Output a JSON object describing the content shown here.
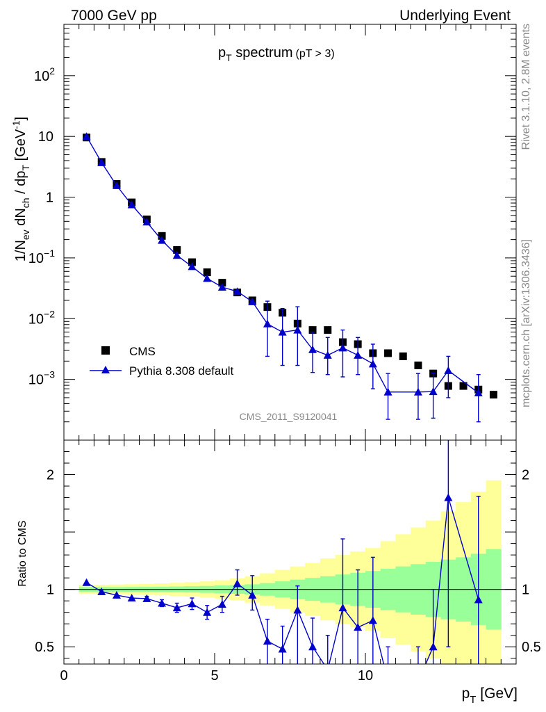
{
  "header": {
    "left": "7000 GeV pp",
    "right": "Underlying Event"
  },
  "side_labels": {
    "rivet": "Rivet 3.1.10,  2.8M events",
    "mcplots": "mcplots.cern.ch [arXiv:1306.3436]"
  },
  "watermark": "CMS_2011_S9120041",
  "colors": {
    "data": "#000000",
    "mc": "#0000cc",
    "band_inner": "#99ff99",
    "band_outer": "#ffff99"
  },
  "chart_data": [
    {
      "type": "scatter",
      "panel": "main",
      "title": "p",
      "title_sub": "T",
      "title_rest": " spectrum",
      "title_small": "(pT >  3)",
      "ylabel": "1/N_ev dN_ch / dp_T [GeV^-1]",
      "xlim": [
        0,
        15
      ],
      "ylim": [
        0.0001,
        700
      ],
      "yscale": "log",
      "y_ticks": [
        {
          "v": 100,
          "base": "10",
          "exp": "2"
        },
        {
          "v": 10,
          "base": "10",
          "exp": ""
        },
        {
          "v": 1,
          "base": "1",
          "exp": ""
        },
        {
          "v": 0.1,
          "base": "10",
          "exp": "−1"
        },
        {
          "v": 0.01,
          "base": "10",
          "exp": "−2"
        },
        {
          "v": 0.001,
          "base": "10",
          "exp": "−3"
        }
      ],
      "legend_position": "bottom-left",
      "series": [
        {
          "name": "CMS",
          "marker": "square",
          "x": [
            0.75,
            1.25,
            1.75,
            2.25,
            2.75,
            3.25,
            3.75,
            4.25,
            4.75,
            5.25,
            5.75,
            6.25,
            6.75,
            7.25,
            7.75,
            8.25,
            8.75,
            9.25,
            9.75,
            10.25,
            10.75,
            11.25,
            11.75,
            12.25,
            12.75,
            13.25,
            13.75,
            14.25
          ],
          "y": [
            9.6,
            3.8,
            1.65,
            0.82,
            0.43,
            0.23,
            0.135,
            0.085,
            0.058,
            0.039,
            0.027,
            0.02,
            0.0155,
            0.0125,
            0.0083,
            0.0065,
            0.0065,
            0.0041,
            0.0038,
            0.0027,
            0.0027,
            0.0024,
            0.0017,
            0.00125,
            0.00078,
            0.00078,
            0.00068,
            0.00056
          ]
        },
        {
          "name": "Pythia 8.308 default",
          "marker": "triangle",
          "x": [
            0.75,
            1.25,
            1.75,
            2.25,
            2.75,
            3.25,
            3.75,
            4.25,
            4.75,
            5.25,
            5.75,
            6.25,
            6.75,
            7.25,
            7.75,
            8.25,
            8.75,
            9.25,
            9.75,
            10.25,
            10.75,
            11.75,
            12.25,
            12.75,
            13.75
          ],
          "y": [
            10.0,
            3.7,
            1.55,
            0.75,
            0.39,
            0.195,
            0.11,
            0.072,
            0.046,
            0.033,
            0.028,
            0.019,
            0.0082,
            0.006,
            0.0065,
            0.0031,
            0.0025,
            0.0033,
            0.0025,
            0.0018,
            0.00062,
            0.00062,
            0.00063,
            0.0014,
            0.0006
          ],
          "err_lo": [
            0,
            0,
            0,
            0,
            0,
            0,
            0,
            0,
            0,
            0,
            0,
            0,
            0.0058,
            0.0043,
            0.0048,
            0.0018,
            0.0013,
            0.0022,
            0.0013,
            0.0011,
            0.0004,
            0.0004,
            0.0004,
            0.0009,
            0.0004
          ],
          "err_hi": [
            0,
            0,
            0,
            0,
            0,
            0,
            0,
            0,
            0,
            0,
            0,
            0,
            0.0112,
            0.0087,
            0.0092,
            0.0029,
            0.0024,
            0.0032,
            0.0024,
            0.002,
            0.00063,
            0.00063,
            0.00064,
            0.001,
            0.0006
          ]
        }
      ]
    },
    {
      "type": "line",
      "panel": "ratio",
      "xlabel": "p_T [GeV]",
      "ylabel": "Ratio to CMS",
      "xlim": [
        0,
        15
      ],
      "ylim": [
        0.35,
        2.3
      ],
      "x_ticks": [
        0,
        5,
        10
      ],
      "y_ticks": [
        0.5,
        1,
        2
      ],
      "bands": {
        "x_edges": [
          0.5,
          1.0,
          1.5,
          2.0,
          2.5,
          3.0,
          3.5,
          4.0,
          4.5,
          5.0,
          5.5,
          6.0,
          6.5,
          7.0,
          7.5,
          8.0,
          8.5,
          9.0,
          9.5,
          10.0,
          10.5,
          11.0,
          11.5,
          12.0,
          12.5,
          13.0,
          13.5,
          14.0,
          14.5
        ],
        "inner_half_width": [
          0.02,
          0.02,
          0.02,
          0.021,
          0.022,
          0.023,
          0.025,
          0.027,
          0.03,
          0.034,
          0.038,
          0.044,
          0.055,
          0.07,
          0.085,
          0.1,
          0.115,
          0.13,
          0.145,
          0.16,
          0.18,
          0.2,
          0.22,
          0.24,
          0.26,
          0.28,
          0.31,
          0.35
        ],
        "outer_half_width": [
          0.04,
          0.04,
          0.042,
          0.045,
          0.048,
          0.052,
          0.057,
          0.063,
          0.07,
          0.08,
          0.095,
          0.115,
          0.14,
          0.17,
          0.2,
          0.23,
          0.27,
          0.3,
          0.33,
          0.36,
          0.42,
          0.48,
          0.54,
          0.6,
          0.68,
          0.76,
          0.85,
          0.95
        ]
      },
      "series": [
        {
          "name": "Pythia 8.308 default",
          "x": [
            0.75,
            1.25,
            1.75,
            2.25,
            2.75,
            3.25,
            3.75,
            4.25,
            4.75,
            5.25,
            5.75,
            6.25,
            6.75,
            7.25,
            7.75,
            8.25,
            8.75,
            9.25,
            9.75,
            10.25,
            10.75,
            11.75,
            12.25,
            12.75,
            13.75
          ],
          "y": [
            1.06,
            0.98,
            0.95,
            0.925,
            0.92,
            0.88,
            0.84,
            0.875,
            0.8,
            0.87,
            1.05,
            0.95,
            0.55,
            0.48,
            0.82,
            0.5,
            0.3,
            0.84,
            0.67,
            0.73,
            0.2,
            0.2,
            0.5,
            1.8,
            0.91
          ],
          "err_lo": [
            0.01,
            0.01,
            0.01,
            0.015,
            0.02,
            0.03,
            0.04,
            0.05,
            0.06,
            0.07,
            0.1,
            0.13,
            0.4,
            0.35,
            0.5,
            0.3,
            0.2,
            0.5,
            0.4,
            0.45,
            0.2,
            0.2,
            0.5,
            1.3,
            0.9
          ],
          "err_hi": [
            0.01,
            0.01,
            0.01,
            0.015,
            0.02,
            0.03,
            0.04,
            0.05,
            0.06,
            0.07,
            0.12,
            0.17,
            0.19,
            0.2,
            0.21,
            0.25,
            0.3,
            0.6,
            0.5,
            0.55,
            0.3,
            0.3,
            0.5,
            1.5,
            0.9
          ]
        }
      ]
    }
  ]
}
